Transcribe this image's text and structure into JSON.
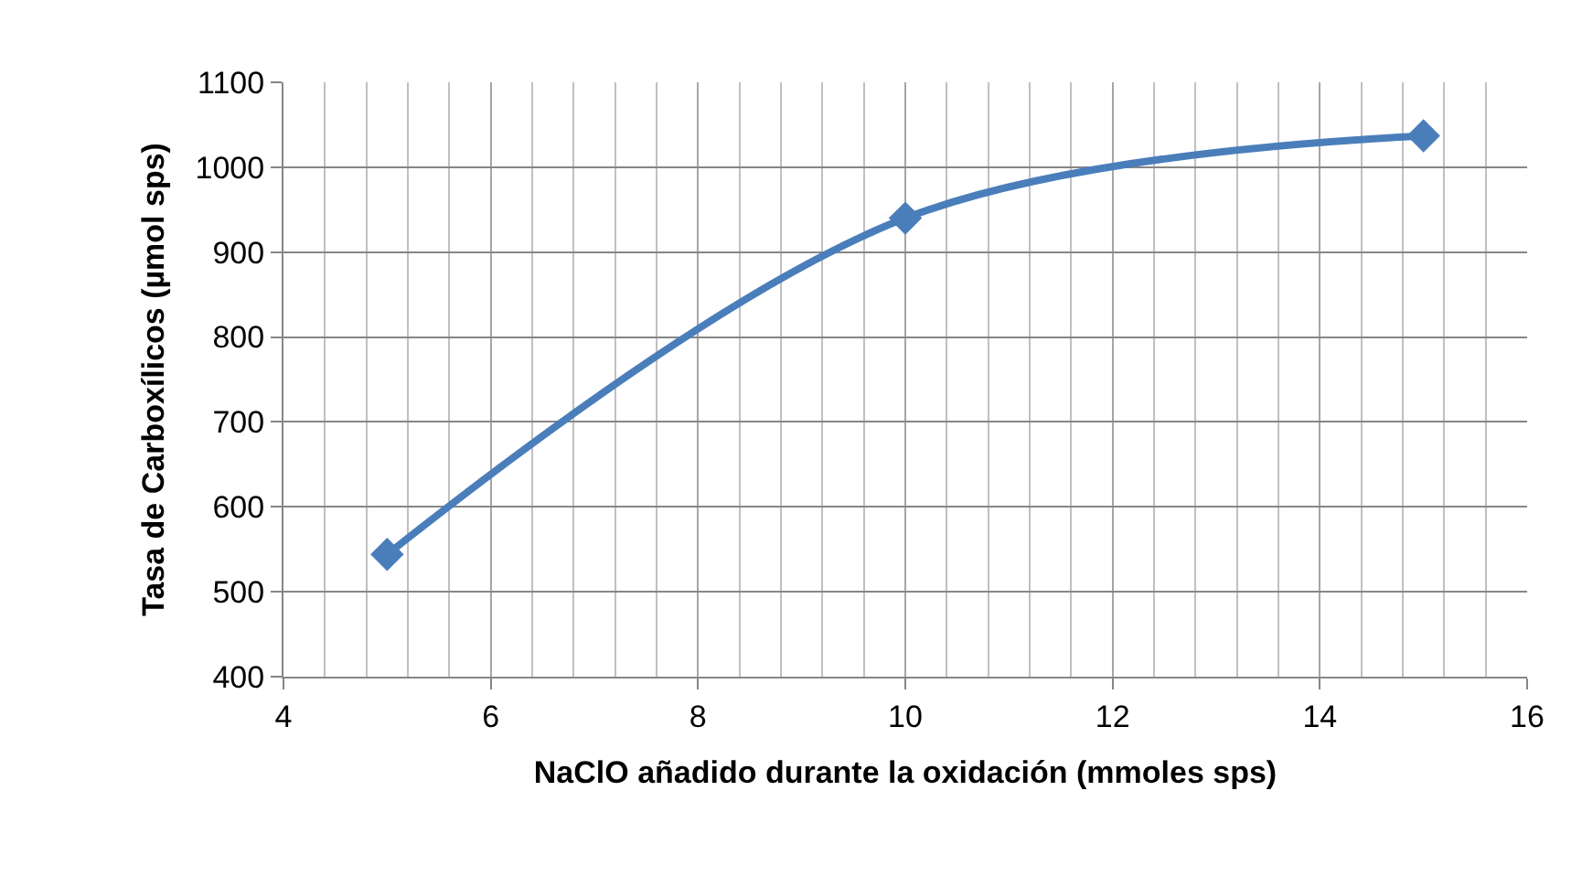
{
  "chart_data": {
    "type": "line",
    "xlabel": "NaClO añadido durante la oxidación (mmoles sps)",
    "ylabel": "Tasa de Carboxílicos (µmol sps)",
    "x": [
      5,
      10,
      15
    ],
    "series": [
      {
        "color": "#4a7ebb",
        "values": [
          544,
          940,
          1037
        ]
      }
    ],
    "xlim": [
      4,
      16
    ],
    "xticks": [
      4,
      6,
      8,
      10,
      12,
      14,
      16
    ],
    "ylim": [
      400,
      1100
    ],
    "yticks": [
      400,
      500,
      600,
      700,
      800,
      900,
      1000,
      1100
    ],
    "grid": true,
    "marker": "diamond",
    "line_style": "solid",
    "legend": false
  }
}
